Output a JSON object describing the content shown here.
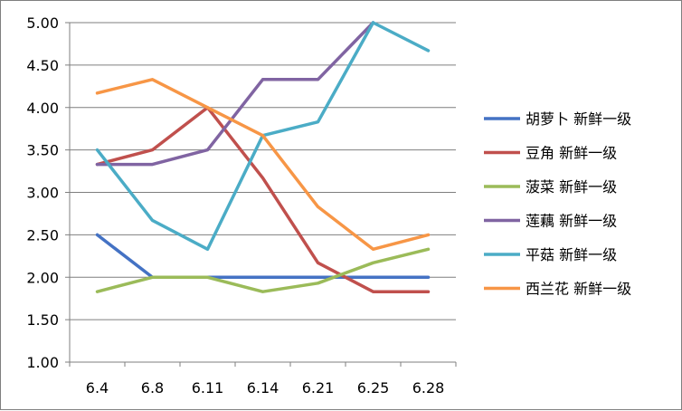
{
  "chart_data": {
    "type": "line",
    "categories": [
      "6.4",
      "6.8",
      "6.11",
      "6.14",
      "6.21",
      "6.25",
      "6.28"
    ],
    "ylim": [
      1.0,
      5.0
    ],
    "yticks": [
      "1.00",
      "1.50",
      "2.00",
      "2.50",
      "3.00",
      "3.50",
      "4.00",
      "4.50",
      "5.00"
    ],
    "grid": "horizontal",
    "legend_position": "right",
    "series": [
      {
        "name": "胡萝卜 新鲜一级",
        "color": "#4472C4",
        "values": [
          2.5,
          2.0,
          2.0,
          2.0,
          2.0,
          2.0,
          2.0
        ]
      },
      {
        "name": "豆角 新鲜一级",
        "color": "#C0504D",
        "values": [
          3.33,
          3.5,
          4.0,
          3.17,
          2.17,
          1.83,
          1.83
        ]
      },
      {
        "name": "菠菜 新鲜一级",
        "color": "#9BBB59",
        "values": [
          1.83,
          2.0,
          2.0,
          1.83,
          1.93,
          2.17,
          2.33
        ]
      },
      {
        "name": "莲藕 新鲜一级",
        "color": "#8064A2",
        "values": [
          3.33,
          3.33,
          3.5,
          4.33,
          4.33,
          5.0,
          null
        ]
      },
      {
        "name": "平菇 新鲜一级",
        "color": "#4BACC6",
        "values": [
          3.5,
          2.67,
          2.33,
          3.67,
          3.83,
          5.0,
          4.67
        ]
      },
      {
        "name": "西兰花 新鲜一级",
        "color": "#F79646",
        "values": [
          4.17,
          4.33,
          4.0,
          3.67,
          2.83,
          2.33,
          2.5
        ]
      }
    ]
  }
}
